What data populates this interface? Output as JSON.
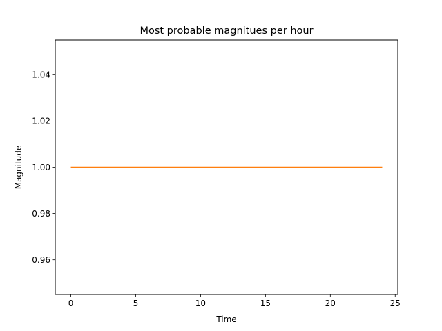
{
  "chart_data": {
    "type": "line",
    "title": "Most probable magnitues per hour",
    "xlabel": "Time",
    "ylabel": "Magnitude",
    "xlim": [
      -1.2,
      25.2
    ],
    "ylim": [
      0.945,
      1.055
    ],
    "xticks": [
      0,
      5,
      10,
      15,
      20,
      25
    ],
    "xtick_labels": [
      "0",
      "5",
      "10",
      "15",
      "20",
      "25"
    ],
    "yticks": [
      0.96,
      0.98,
      1.0,
      1.02,
      1.04
    ],
    "ytick_labels": [
      "0.96",
      "0.98",
      "1.00",
      "1.02",
      "1.04"
    ],
    "grid": false,
    "series": [
      {
        "color": "#ff7f0e",
        "x": [
          0,
          24
        ],
        "y": [
          1.0,
          1.0
        ]
      }
    ]
  }
}
